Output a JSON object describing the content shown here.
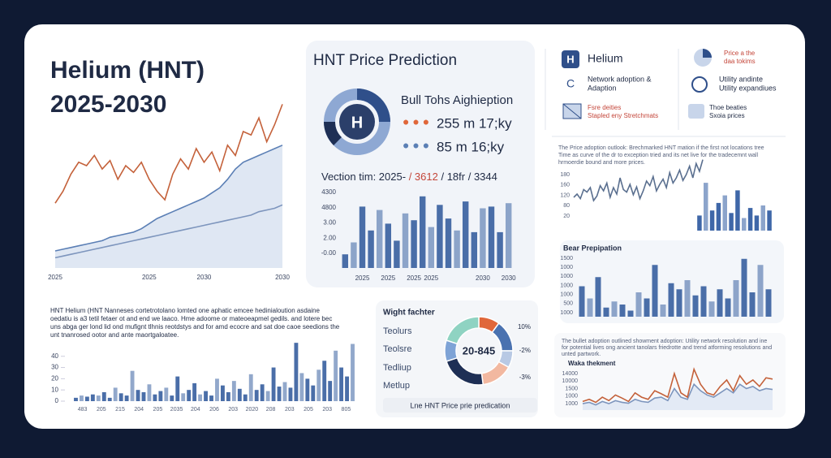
{
  "header": {
    "title": [
      "Helium (HNT)",
      "2025-2030"
    ]
  },
  "price_panel": {
    "title": "HNT Price Prediction",
    "icon_letter": "H",
    "headline": "Bull Tohs Aighieption",
    "rows": [
      "255 m 17;ky",
      "85 m 16;ky"
    ],
    "vection": [
      "Vection tim: 2025-",
      "/ 3612",
      "/ 18fr",
      "/ 3344"
    ]
  },
  "info_panel": {
    "left": [
      {
        "icon": "H",
        "lines": [
          "Helium"
        ]
      },
      {
        "icon": "C",
        "lines": [
          "Network adoption &",
          "Adaption"
        ]
      },
      {
        "lines": [
          "Fsre deities",
          "Stapled eny Stretchmats"
        ]
      }
    ],
    "right": [
      {
        "lines": [
          "Price a the",
          "daa tokims"
        ]
      },
      {
        "lines": [
          "Utility andinte",
          "Utility expandiues"
        ]
      },
      {
        "lines": [
          "Thoe beaties",
          "Sxoia prices"
        ]
      }
    ]
  },
  "right_mid": {
    "paragraph": [
      "The Price adoption outlook: Brechmarked HNT mation if the first not locations tree",
      "Time as curve of the dr to exception tried and its net live for the tradecemnt wall",
      "hrmoerdie bound and more prices."
    ]
  },
  "bear_panel": {
    "title": "Bear Prepipation"
  },
  "bottom_right": {
    "paragraph": [
      "The bullet adoption outlined showment adoption: Utility network resolution and ine",
      "for potential lives ong ancient tanolars friedrotte and trend atforming resolutions and",
      "unted partwork."
    ],
    "subtitle": "Waka thekment"
  },
  "bottom_left": {
    "paragraph": [
      "HNT Helium (HNT Nanneses cortetrotolano lomted one aphatic emcee hedinialoution asdaine",
      "oedatiu is a3 tetil fetaer ot and end we laaco. Hme adoome or mateoeapmel gedils. and lotere bec",
      "uns abga ger lond lid ond mufignt tlhnis reotdstys and for amd ecocre and sat doe caoe seedions the",
      "unt tnanrosed ootor and ante maortgaloatee."
    ]
  },
  "donut_panel": {
    "title": "Wight fachter",
    "labels": [
      "Teolurs",
      "Teolsre",
      "Tedliup",
      "Metlup"
    ],
    "center": "20-845",
    "pct": [
      "10%",
      "-2%",
      "-3%"
    ],
    "footer": "Lne HNT Price prie predication"
  },
  "chart_data": [
    {
      "type": "line",
      "categories": [
        "2025",
        null,
        null,
        null,
        null,
        null,
        null,
        null,
        null,
        null,
        null,
        null,
        "2025",
        null,
        null,
        null,
        null,
        null,
        null,
        "2030",
        null,
        null,
        null,
        null,
        null,
        null,
        null,
        null,
        null,
        "2030"
      ],
      "ylim": [
        0,
        100
      ],
      "series": [
        {
          "color": "#c4613a",
          "values": [
            38,
            45,
            55,
            62,
            60,
            66,
            58,
            63,
            52,
            60,
            56,
            62,
            52,
            45,
            40,
            55,
            64,
            58,
            70,
            62,
            68,
            57,
            72,
            66,
            80,
            78,
            88,
            74,
            84,
            96
          ]
        },
        {
          "color": "#5b7fb5",
          "fill": "#dfe7f3",
          "values": [
            10,
            11,
            12,
            13,
            14,
            15,
            16,
            18,
            19,
            20,
            21,
            23,
            26,
            29,
            31,
            33,
            35,
            37,
            39,
            41,
            44,
            47,
            52,
            58,
            62,
            64,
            66,
            68,
            70,
            72
          ]
        },
        {
          "color": "#7d95bd",
          "values": [
            6,
            7,
            8,
            9,
            10,
            11,
            12,
            13,
            14,
            15,
            16,
            17,
            18,
            19,
            20,
            21,
            22,
            23,
            24,
            25,
            26,
            27,
            28,
            29,
            30,
            31,
            33,
            34,
            35,
            37
          ]
        }
      ]
    },
    {
      "type": "bar",
      "color": "#4a6ea8",
      "ylim": [
        0,
        5
      ],
      "y_labels": [
        "4300",
        "4800",
        "3.00",
        "2.00",
        "-0.00"
      ],
      "categories": [
        null,
        null,
        "2025",
        null,
        null,
        "2025",
        null,
        null,
        "2025",
        null,
        "2025",
        null,
        null,
        null,
        null,
        null,
        "2030",
        null,
        null,
        "2030"
      ],
      "values": [
        0.8,
        1.5,
        3.6,
        2.2,
        3.4,
        2.6,
        1.6,
        3.2,
        2.8,
        4.2,
        2.4,
        3.7,
        2.9,
        2.2,
        3.9,
        2.1,
        3.5,
        3.6,
        2.1,
        3.8
      ]
    },
    {
      "type": "line",
      "ylim": [
        0,
        100
      ],
      "y_labels": [
        "180",
        "160",
        "120",
        "80",
        "20"
      ],
      "series": [
        {
          "color": "#5a6f8f",
          "values": [
            40,
            45,
            38,
            52,
            48,
            55,
            35,
            42,
            58,
            50,
            62,
            40,
            55,
            45,
            70,
            52,
            48,
            60,
            44,
            56,
            38,
            50,
            65,
            58,
            72,
            50,
            60,
            68,
            55,
            78,
            62,
            70,
            82,
            66,
            75,
            88,
            70,
            92,
            80,
            98
          ]
        }
      ]
    },
    {
      "type": "bar",
      "color": "#3f67a8",
      "ylim": [
        0,
        100
      ],
      "values": [
        30,
        95,
        40,
        55,
        70,
        35,
        80,
        25,
        45,
        30,
        50,
        40
      ]
    },
    {
      "type": "bar",
      "color": "#4a6ea8",
      "ylim": [
        0,
        100
      ],
      "y_labels": [
        "1500",
        "1000",
        "1000",
        "1000",
        "1000",
        "500",
        "1000"
      ],
      "values": [
        50,
        30,
        65,
        15,
        25,
        20,
        10,
        40,
        30,
        85,
        20,
        55,
        45,
        60,
        35,
        50,
        25,
        45,
        30,
        60,
        95,
        40,
        85,
        45
      ]
    },
    {
      "type": "line",
      "ylim": [
        0,
        100
      ],
      "y_labels": [
        "14000",
        "10000",
        "1500",
        "1000",
        "1000"
      ],
      "series": [
        {
          "color": "#7d95bd",
          "fill": "#e3eaf5",
          "values": [
            15,
            18,
            12,
            20,
            15,
            22,
            18,
            16,
            25,
            20,
            18,
            28,
            30,
            22,
            50,
            30,
            25,
            60,
            45,
            35,
            30,
            40,
            50,
            40,
            60,
            50,
            55,
            45,
            50,
            48
          ]
        },
        {
          "color": "#c4613a",
          "values": [
            20,
            25,
            18,
            30,
            22,
            35,
            28,
            20,
            40,
            30,
            25,
            45,
            38,
            30,
            85,
            40,
            30,
            95,
            60,
            40,
            35,
            55,
            70,
            45,
            80,
            60,
            70,
            55,
            75,
            72
          ]
        }
      ]
    },
    {
      "type": "bar",
      "color": "#4a6ea8",
      "ylim": [
        0,
        55
      ],
      "yticks": [
        40,
        30,
        20,
        10,
        0
      ],
      "x_labels": [
        "483",
        "205",
        "215",
        "204",
        "205",
        "2035",
        "204",
        "206",
        "203",
        "2020",
        "208",
        "203",
        "205",
        "203",
        "805"
      ],
      "values": [
        3,
        5,
        4,
        6,
        5,
        8,
        3,
        12,
        7,
        5,
        27,
        10,
        8,
        15,
        6,
        9,
        12,
        5,
        22,
        7,
        10,
        16,
        6,
        9,
        5,
        20,
        14,
        8,
        18,
        11,
        6,
        24,
        10,
        15,
        9,
        30,
        13,
        17,
        12,
        52,
        25,
        20,
        14,
        28,
        36,
        18,
        45,
        30,
        22,
        51
      ]
    },
    {
      "type": "pie",
      "colors": [
        "#e0673a",
        "#4a72b0",
        "#b8c9e4",
        "#f2b8a0",
        "#1e2f55",
        "#7ea3d6",
        "#8fd3c2"
      ],
      "values": [
        10,
        15,
        8,
        15,
        22,
        10,
        20
      ]
    }
  ]
}
